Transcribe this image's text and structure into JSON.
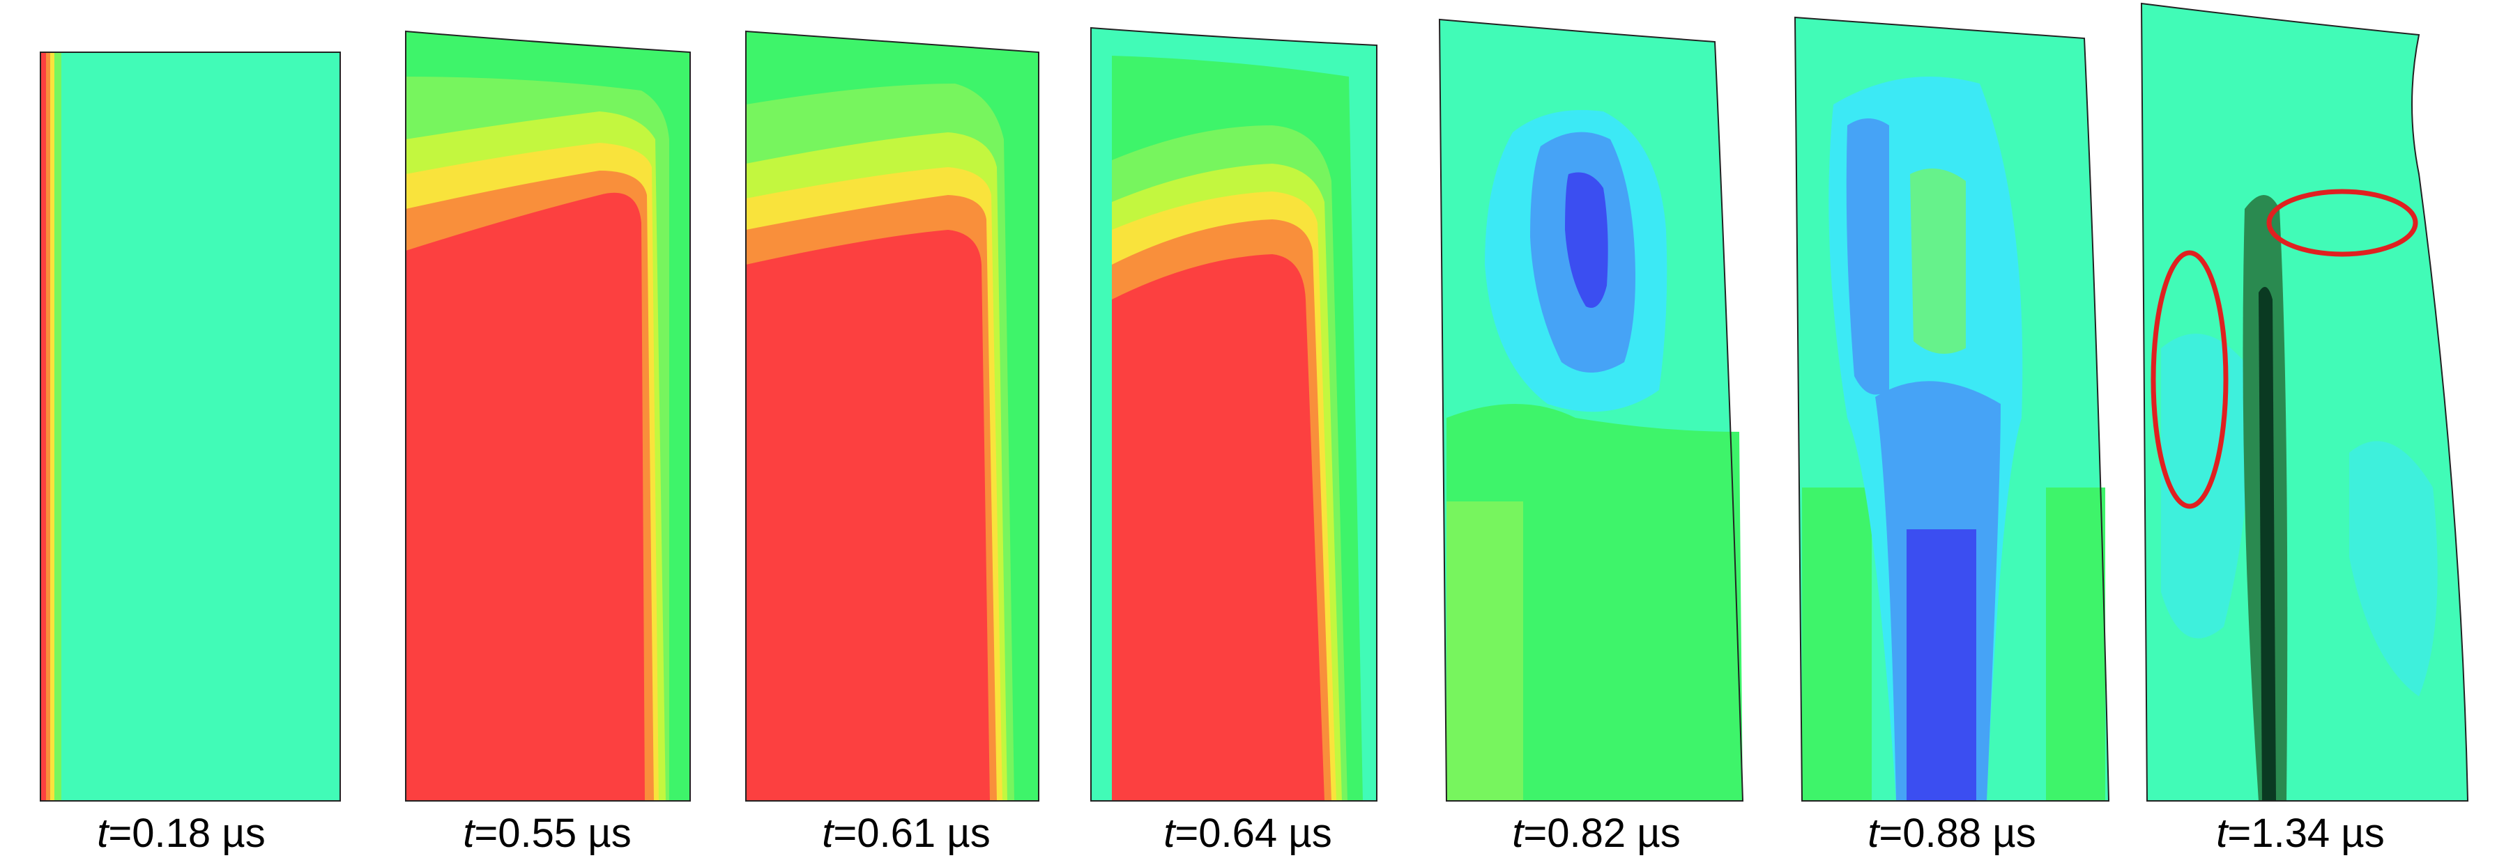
{
  "colors": {
    "red": "#fc4040",
    "orange": "#f98f3b",
    "yellow": "#f9e33c",
    "yellow_green": "#c3f73f",
    "green": "#3ef46a",
    "green_light": "#77f55e",
    "cyan_green": "#41fbb7",
    "cyan": "#3ce9f5",
    "light_blue": "#46a3f6",
    "blue": "#3b82f1",
    "dark_blue": "#3b4ef1",
    "crack_dark": "#0a3a22",
    "ellipse": "#e02020"
  },
  "panels": [
    {
      "t": "t",
      "eq": "=0.18 µs"
    },
    {
      "t": "t",
      "eq": "=0.55 µs"
    },
    {
      "t": "t",
      "eq": "=0.61 µs"
    },
    {
      "t": "t",
      "eq": "=0.64 µs"
    },
    {
      "t": "t",
      "eq": "=0.82 µs"
    },
    {
      "t": "t",
      "eq": "=0.88 µs"
    },
    {
      "t": "t",
      "eq": "=1.34 µs"
    }
  ]
}
